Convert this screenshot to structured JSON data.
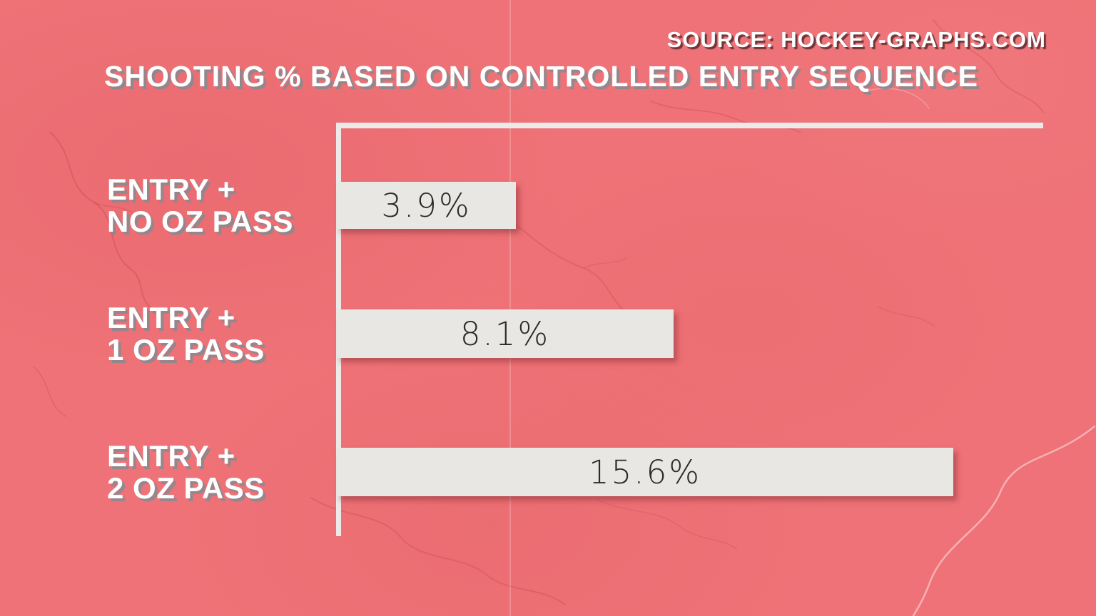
{
  "source_credit": "SOURCE: HOCKEY-GRAPHS.COM",
  "colors": {
    "background": "#ee7277",
    "bar_fill": "#e8e7e4",
    "axis": "#eceae8",
    "title_text": "#ffffff",
    "title_shadow": "#808c92",
    "source_shadow": "#201013",
    "value_text": "#2a2a2a",
    "crack_red": "#c2424c"
  },
  "chart_data": {
    "type": "bar",
    "orientation": "horizontal",
    "title": "SHOOTING % BASED ON CONTROLLED ENTRY SEQUENCE",
    "xlabel": "",
    "ylabel": "",
    "xlim": [
      0,
      18
    ],
    "grid": false,
    "legend": false,
    "categories": [
      "ENTRY + NO OZ PASS",
      "ENTRY + 1 OZ PASS",
      "ENTRY + 2 OZ PASS"
    ],
    "values": [
      3.9,
      8.1,
      15.6
    ],
    "bars": [
      {
        "label_line1": "ENTRY +",
        "label_line2": "NO OZ PASS",
        "value": 3.9,
        "value_label": "3.9%",
        "width_pct": 25.4
      },
      {
        "label_line1": "ENTRY +",
        "label_line2": "1 OZ PASS",
        "value": 8.1,
        "value_label": "8.1%",
        "width_pct": 47.7
      },
      {
        "label_line1": "ENTRY +",
        "label_line2": "2 OZ PASS",
        "value": 15.6,
        "value_label": "15.6%",
        "width_pct": 87.3
      }
    ]
  }
}
